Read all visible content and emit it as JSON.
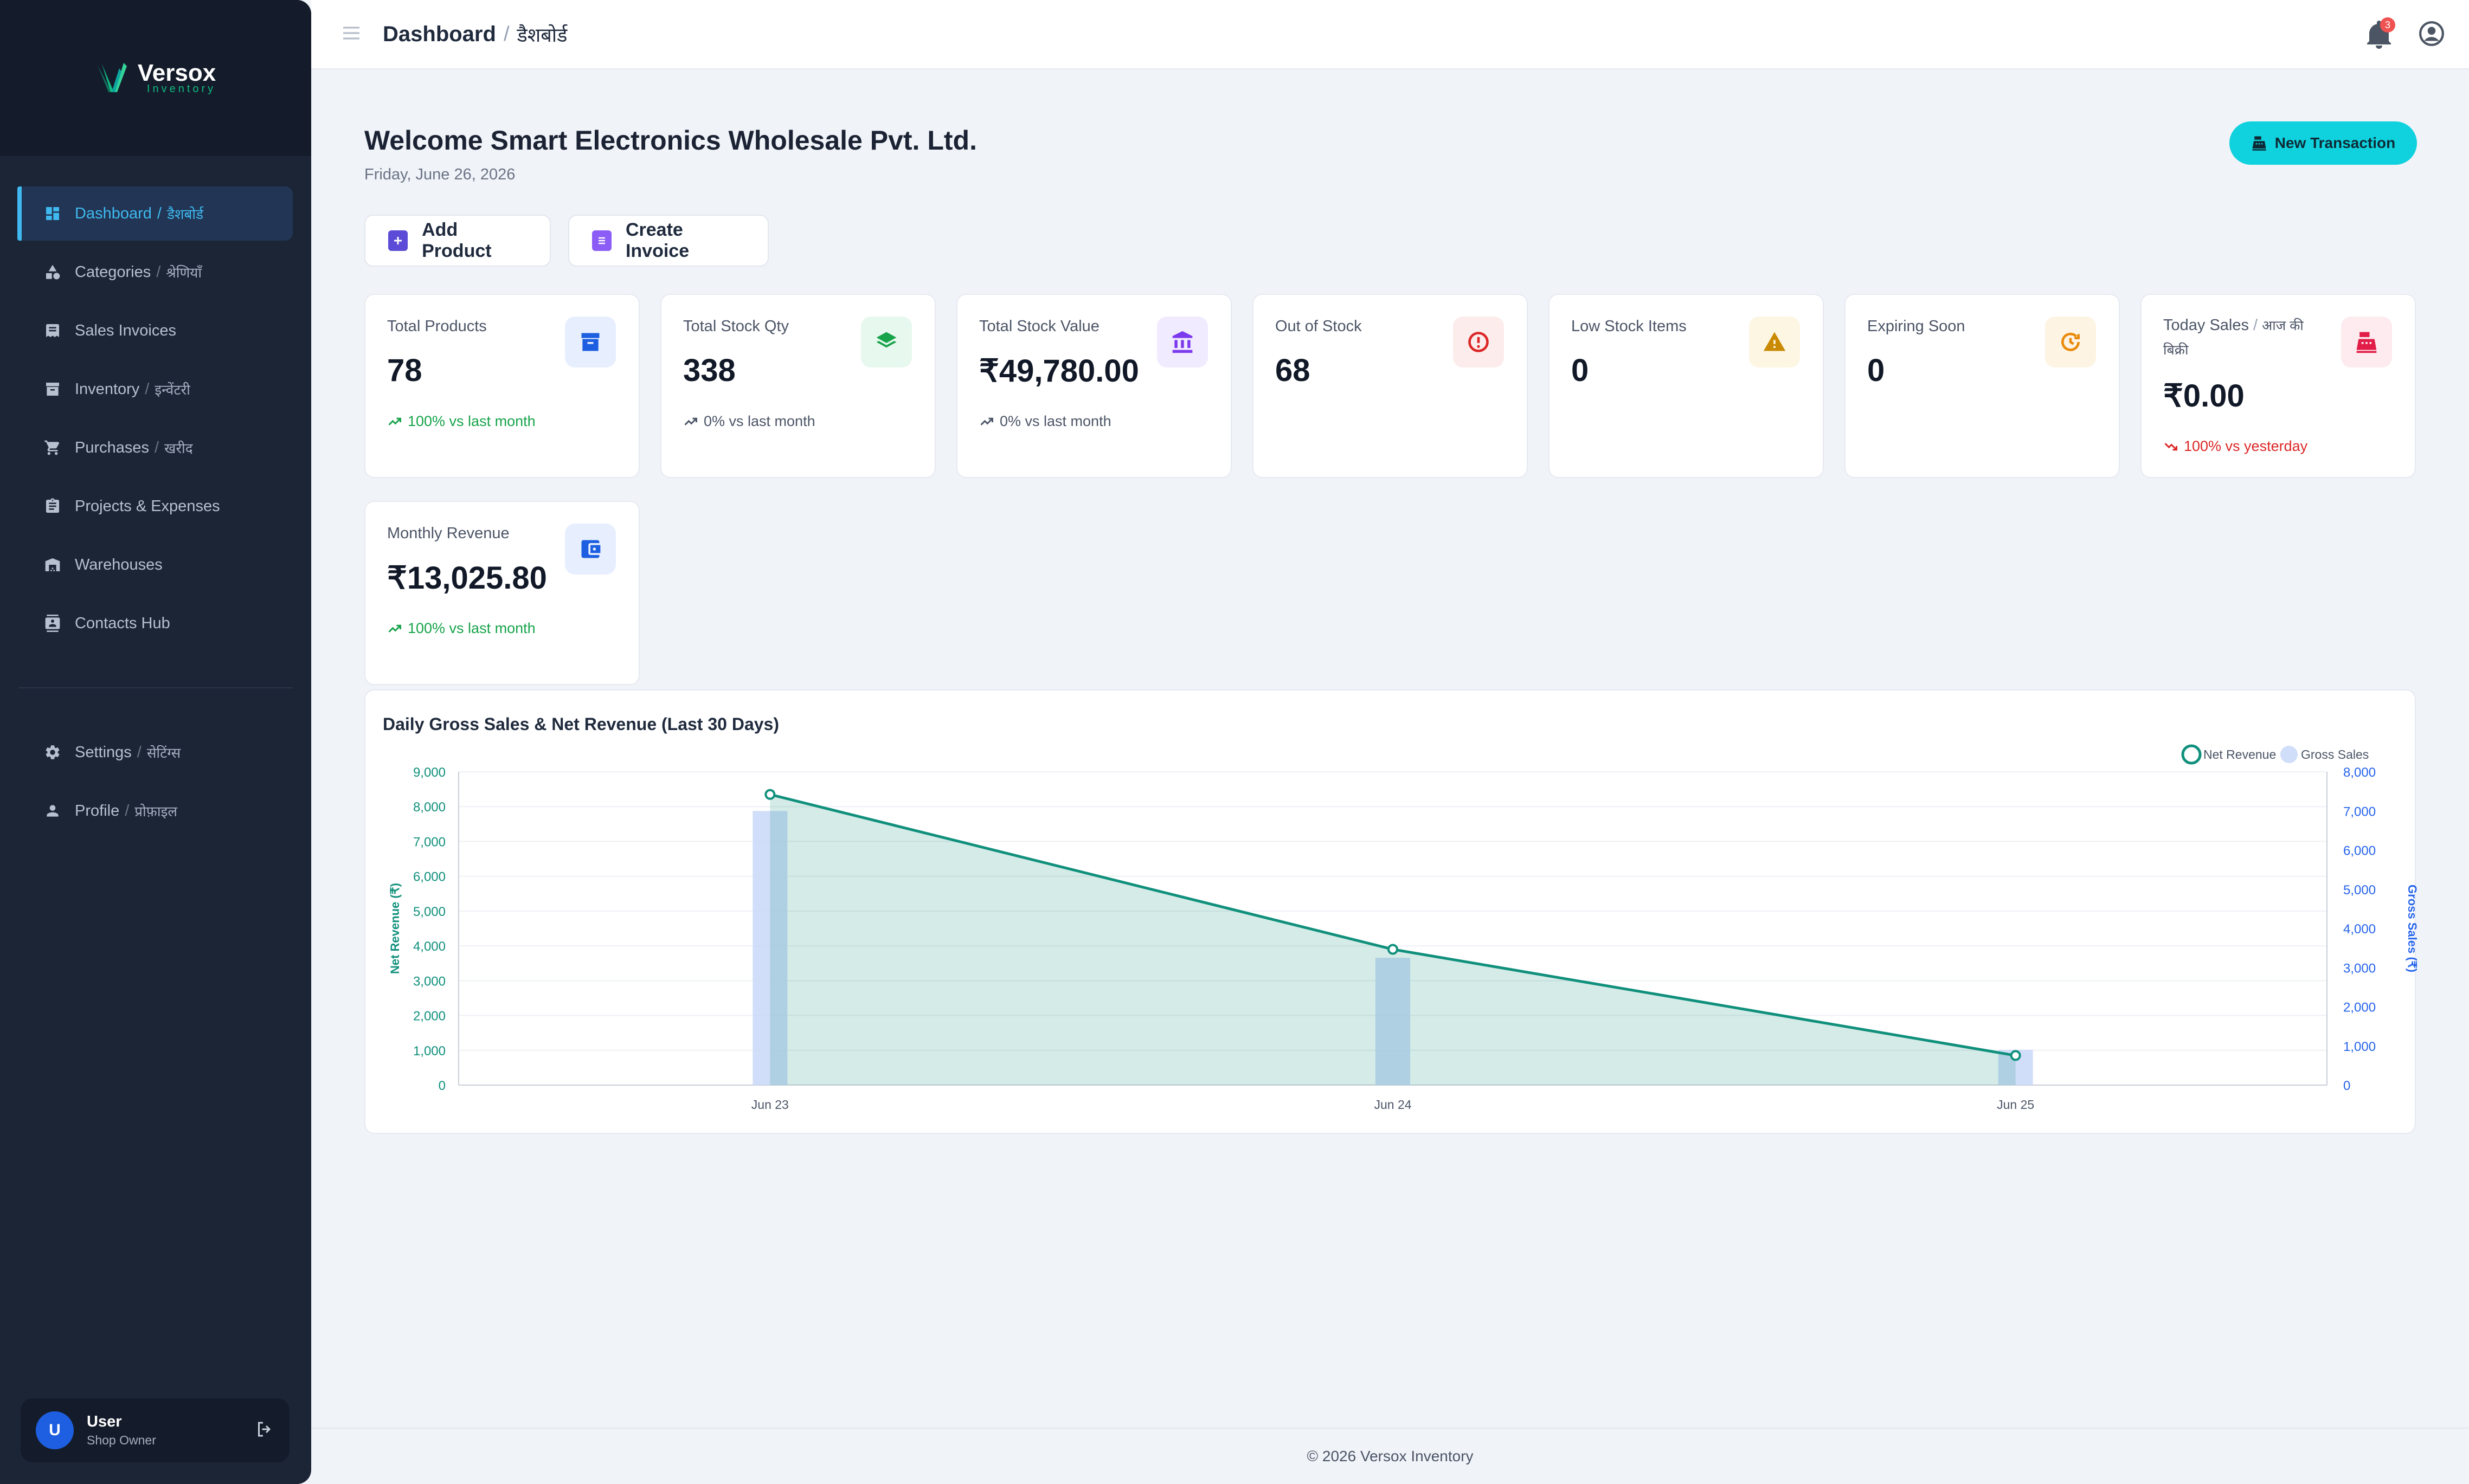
{
  "app": {
    "name": "Versox",
    "subtitle": "Inventory"
  },
  "sidebar": {
    "items": [
      {
        "label": "Dashboard",
        "hi": "डैशबोर्ड",
        "icon": "dashboard-icon",
        "active": true
      },
      {
        "label": "Categories",
        "hi": "श्रेणियाँ",
        "icon": "shapes-icon"
      },
      {
        "label": "Sales Invoices",
        "hi": "",
        "icon": "receipt-icon"
      },
      {
        "label": "Inventory",
        "hi": "इन्वेंटरी",
        "icon": "archive-icon"
      },
      {
        "label": "Purchases",
        "hi": "खरीद",
        "icon": "cart-icon"
      },
      {
        "label": "Projects & Expenses",
        "hi": "",
        "icon": "clipboard-icon"
      },
      {
        "label": "Warehouses",
        "hi": "",
        "icon": "warehouse-icon"
      },
      {
        "label": "Contacts Hub",
        "hi": "",
        "icon": "contacts-icon"
      }
    ],
    "bottom_items": [
      {
        "label": "Settings",
        "hi": "सेटिंग्स",
        "icon": "gear-icon"
      },
      {
        "label": "Profile",
        "hi": "प्रोफ़ाइल",
        "icon": "person-icon"
      }
    ],
    "user": {
      "initial": "U",
      "name": "User",
      "role": "Shop Owner"
    }
  },
  "header": {
    "title": "Dashboard",
    "separator": "/",
    "title_hi": "डैशबोर्ड",
    "notification_count": "3"
  },
  "main": {
    "welcome": "Welcome Smart Electronics Wholesale Pvt. Ltd.",
    "date": "Friday, June 26, 2026",
    "new_transaction": "New Transaction",
    "add_product": "Add Product",
    "create_invoice": "Create Invoice"
  },
  "stats": [
    {
      "label": "Total Products",
      "value": "78",
      "trend": "100% vs last month",
      "trend_dir": "up",
      "icon": "archive-box-icon",
      "icon_color": "#1d5fe0",
      "icon_bg": "#e7efff"
    },
    {
      "label": "Total Stock Qty",
      "value": "338",
      "trend": "0% vs last month",
      "trend_dir": "neutral",
      "icon": "layers-icon",
      "icon_color": "#17a34a",
      "icon_bg": "#e7f8ee"
    },
    {
      "label": "Total Stock Value",
      "value": "₹49,780.00",
      "trend": "0% vs last month",
      "trend_dir": "neutral",
      "icon": "bank-icon",
      "icon_color": "#7c3aed",
      "icon_bg": "#f1ebff"
    },
    {
      "label": "Out of Stock",
      "value": "68",
      "trend": "",
      "trend_dir": "none",
      "icon": "alert-circle-icon",
      "icon_color": "#dc2626",
      "icon_bg": "#fdecec"
    },
    {
      "label": "Low Stock Items",
      "value": "0",
      "trend": "",
      "trend_dir": "none",
      "icon": "warning-icon",
      "icon_color": "#ca8a04",
      "icon_bg": "#fdf6e3"
    },
    {
      "label": "Expiring Soon",
      "value": "0",
      "trend": "",
      "trend_dir": "none",
      "icon": "clock-refresh-icon",
      "icon_color": "#ea8a0a",
      "icon_bg": "#fef4e4"
    },
    {
      "label": "Today Sales",
      "label_hi": "आज की बिक्री",
      "value": "₹0.00",
      "trend": "100% vs yesterday",
      "trend_dir": "down",
      "icon": "cash-register-icon",
      "icon_color": "#e11d48",
      "icon_bg": "#fdebef"
    },
    {
      "label": "Monthly Revenue",
      "value": "₹13,025.80",
      "trend": "100% vs last month",
      "trend_dir": "up",
      "icon": "wallet-icon",
      "icon_color": "#1d5fe0",
      "icon_bg": "#e7efff"
    }
  ],
  "chart_data": {
    "type": "line",
    "title": "Daily Gross Sales & Net Revenue (Last 30 Days)",
    "categories": [
      "Jun 23",
      "Jun 24",
      "Jun 25"
    ],
    "series": [
      {
        "name": "Net Revenue",
        "type": "area",
        "axis": "left",
        "values": [
          8350,
          3900,
          850
        ],
        "color": "#10907c"
      },
      {
        "name": "Gross Sales",
        "type": "bar",
        "axis": "right",
        "values": [
          7000,
          3250,
          900
        ],
        "color": "#c9d8f8"
      }
    ],
    "ylabel": "Net Revenue (₹)",
    "y2label": "Gross Sales (₹)",
    "ylim": [
      0,
      9000
    ],
    "y2lim": [
      0,
      8000
    ],
    "yticks": [
      "0",
      "1,000",
      "2,000",
      "3,000",
      "4,000",
      "5,000",
      "6,000",
      "7,000",
      "8,000",
      "9,000"
    ],
    "y2ticks": [
      "0",
      "1,000",
      "2,000",
      "3,000",
      "4,000",
      "5,000",
      "6,000",
      "7,000",
      "8,000"
    ],
    "legend": "top-right",
    "grid": true
  },
  "footer": {
    "text": "© 2026 Versox Inventory"
  }
}
